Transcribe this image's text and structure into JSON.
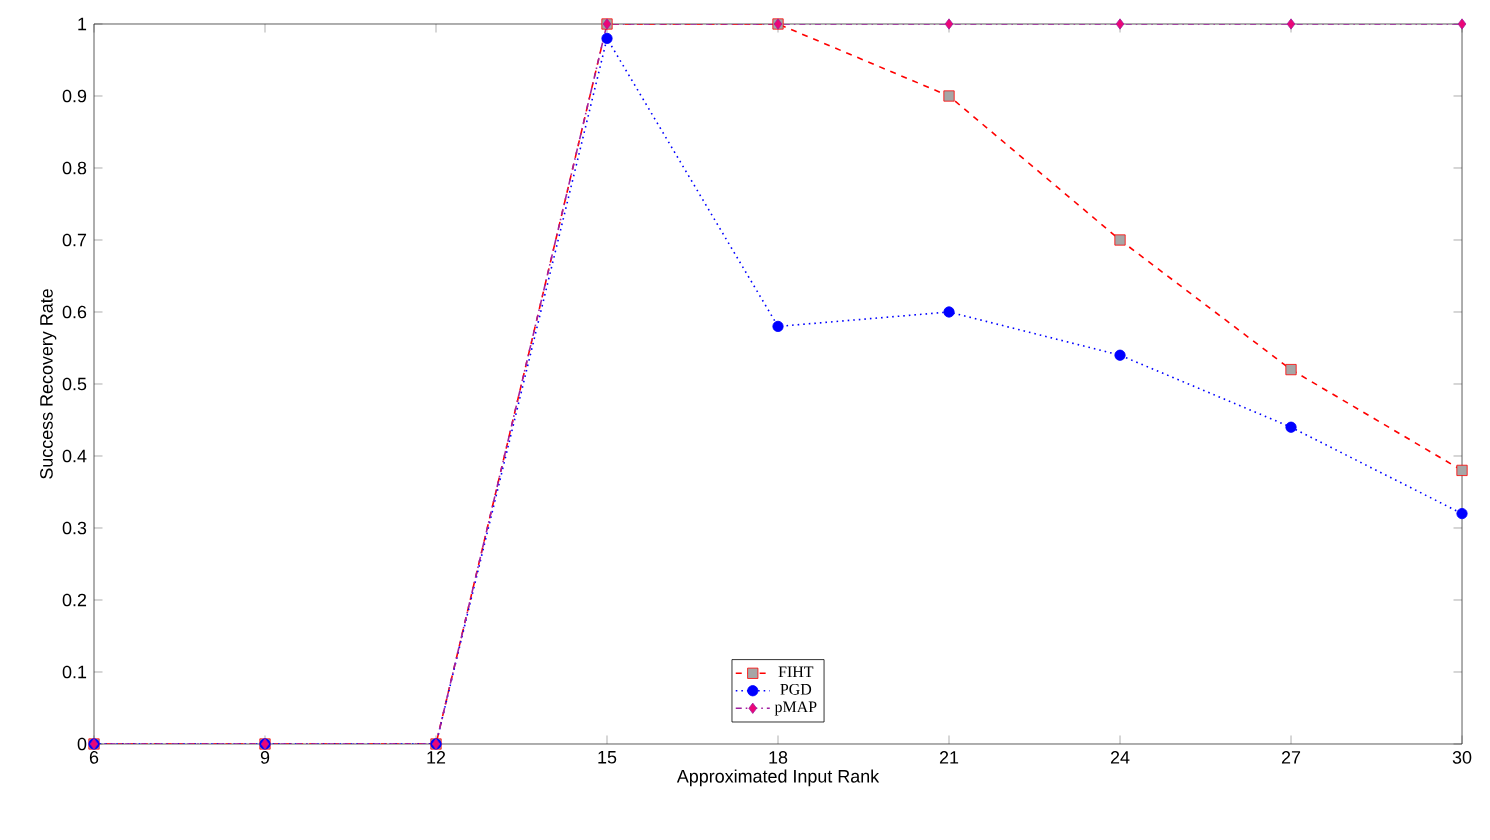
{
  "chart_data": {
    "type": "line",
    "xlabel": "Approximated Input Rank",
    "ylabel": "Success Recovery Rate",
    "x": [
      6,
      9,
      12,
      15,
      18,
      21,
      24,
      27,
      30
    ],
    "series": [
      {
        "name": "FIHT",
        "color": "#ff0000",
        "marker": "square",
        "line_style": "dashed",
        "values": [
          0,
          0,
          0,
          1,
          1,
          0.9,
          0.7,
          0.52,
          0.38
        ]
      },
      {
        "name": "PGD",
        "color": "#0000ff",
        "marker": "circle",
        "line_style": "dotted",
        "values": [
          0,
          0,
          0,
          0.98,
          0.58,
          0.6,
          0.54,
          0.44,
          0.32
        ]
      },
      {
        "name": "pMAP",
        "color": "#a020a0",
        "marker": "diamond",
        "line_style": "dashdot",
        "values": [
          0,
          0,
          0,
          1,
          1,
          1,
          1,
          1,
          1
        ]
      }
    ],
    "xlim": [
      6,
      30
    ],
    "ylim": [
      0,
      1
    ],
    "xticks": [
      6,
      9,
      12,
      15,
      18,
      21,
      24,
      27,
      30
    ],
    "yticks": [
      0,
      0.1,
      0.2,
      0.3,
      0.4,
      0.5,
      0.6,
      0.7,
      0.8,
      0.9,
      1
    ],
    "grid": false,
    "legend": "bottom"
  }
}
